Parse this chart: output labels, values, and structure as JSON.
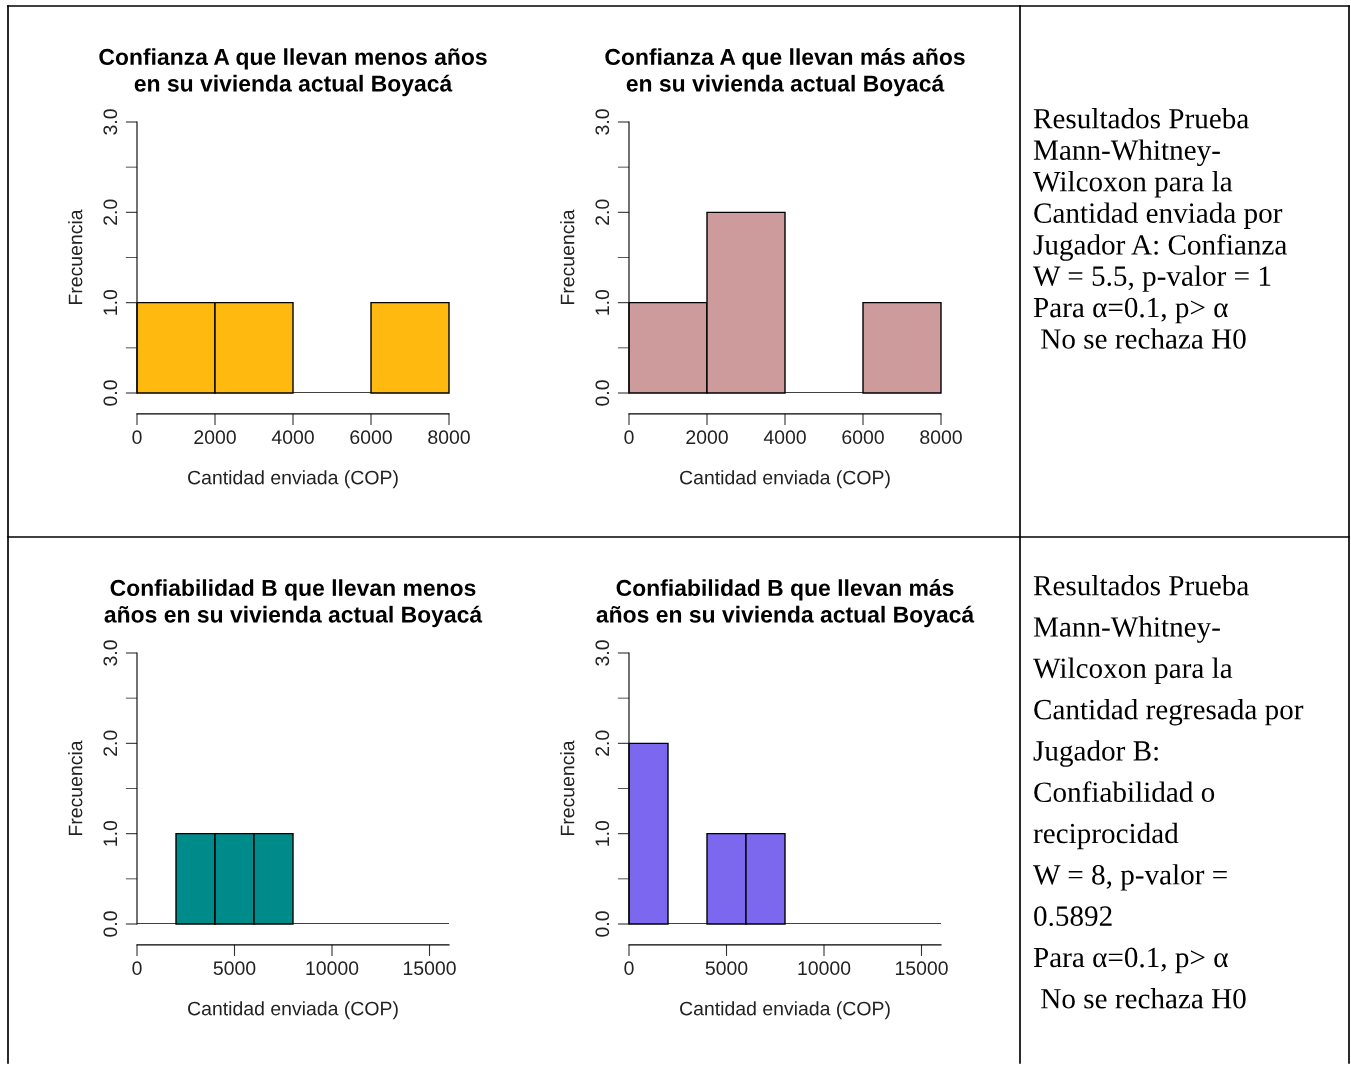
{
  "chart_data": [
    {
      "type": "histogram",
      "title": "Confianza A que llevan menos años\nen su vivienda actual Boyacá",
      "xlabel": "Cantidad enviada (COP)",
      "ylabel": "Frecuencia",
      "bins": [
        0,
        2000,
        4000,
        6000,
        8000
      ],
      "values": [
        1,
        1,
        0,
        1
      ],
      "color": "#ffb90f",
      "ref_lines": [
        {
          "axis": "y",
          "value": 0,
          "color": "#000000"
        }
      ],
      "xlim": [
        0,
        8000
      ],
      "xticks": [
        0,
        2000,
        4000,
        6000,
        8000
      ],
      "ylim": [
        0,
        3
      ],
      "yticks": [
        {
          "value": 0,
          "label": "0.0"
        },
        {
          "value": 0.5,
          "label": null
        },
        {
          "value": 1,
          "label": "1.0"
        },
        {
          "value": 1.5,
          "label": null
        },
        {
          "value": 2,
          "label": "2.0"
        },
        {
          "value": 2.5,
          "label": null
        },
        {
          "value": 3,
          "label": "3.0"
        }
      ]
    },
    {
      "type": "histogram",
      "title": "Confianza A que llevan más años\nen su vivienda actual Boyacá",
      "xlabel": "Cantidad enviada (COP)",
      "ylabel": "Frecuencia",
      "bins": [
        0,
        2000,
        4000,
        6000,
        8000
      ],
      "values": [
        1,
        2,
        0,
        1
      ],
      "color": "#cd9b9b",
      "ref_lines": [
        {
          "axis": "y",
          "value": 0,
          "color": "#000000"
        }
      ],
      "xlim": [
        0,
        8000
      ],
      "xticks": [
        0,
        2000,
        4000,
        6000,
        8000
      ],
      "ylim": [
        0,
        3
      ],
      "yticks": [
        {
          "value": 0,
          "label": "0.0"
        },
        {
          "value": 0.5,
          "label": null
        },
        {
          "value": 1,
          "label": "1.0"
        },
        {
          "value": 1.5,
          "label": null
        },
        {
          "value": 2,
          "label": "2.0"
        },
        {
          "value": 2.5,
          "label": null
        },
        {
          "value": 3,
          "label": "3.0"
        }
      ]
    },
    {
      "type": "other",
      "annotations": [
        "Resultados Prueba",
        "Mann-Whitney-",
        "Wilcoxon para la",
        "Cantidad enviada por",
        "Jugador A: Confianza",
        "W = 5.5, p-valor = 1",
        "Para α=0.1, p> α",
        " No se rechaza H0"
      ]
    },
    {
      "type": "histogram",
      "title": "Confiabilidad B que llevan menos\naños en su vivienda actual Boyacá",
      "xlabel": "Cantidad enviada (COP)",
      "ylabel": "Frecuencia",
      "bins": [
        0,
        2000,
        4000,
        6000,
        8000,
        10000,
        12000,
        14000,
        16000
      ],
      "values": [
        0,
        1,
        1,
        1,
        0,
        0,
        0,
        0
      ],
      "color": "#008b8b",
      "ref_lines": [
        {
          "axis": "y",
          "value": 0,
          "color": "#000000"
        }
      ],
      "xlim": [
        0,
        16000
      ],
      "xticks": [
        0,
        5000,
        10000,
        15000
      ],
      "ylim": [
        0,
        3
      ],
      "yticks": [
        {
          "value": 0,
          "label": "0.0"
        },
        {
          "value": 0.5,
          "label": null
        },
        {
          "value": 1,
          "label": "1.0"
        },
        {
          "value": 1.5,
          "label": null
        },
        {
          "value": 2,
          "label": "2.0"
        },
        {
          "value": 2.5,
          "label": null
        },
        {
          "value": 3,
          "label": "3.0"
        }
      ]
    },
    {
      "type": "histogram",
      "title": "Confiabilidad B que llevan más\naños en su vivienda actual Boyacá",
      "xlabel": "Cantidad enviada (COP)",
      "ylabel": "Frecuencia",
      "bins": [
        0,
        2000,
        4000,
        6000,
        8000,
        10000,
        12000,
        14000,
        16000
      ],
      "values": [
        2,
        0,
        1,
        1,
        0,
        0,
        0,
        0
      ],
      "color": "#7b68ee",
      "ref_lines": [
        {
          "axis": "y",
          "value": 0,
          "color": "#000000"
        }
      ],
      "xlim": [
        0,
        16000
      ],
      "xticks": [
        0,
        5000,
        10000,
        15000
      ],
      "ylim": [
        0,
        3
      ],
      "yticks": [
        {
          "value": 0,
          "label": "0.0"
        },
        {
          "value": 0.5,
          "label": null
        },
        {
          "value": 1,
          "label": "1.0"
        },
        {
          "value": 1.5,
          "label": null
        },
        {
          "value": 2,
          "label": "2.0"
        },
        {
          "value": 2.5,
          "label": null
        },
        {
          "value": 3,
          "label": "3.0"
        }
      ]
    },
    {
      "type": "other",
      "annotations": [
        "Resultados Prueba",
        "Mann-Whitney-",
        "Wilcoxon para la",
        "Cantidad regresada por",
        "Jugador B:",
        "Confiabilidad o",
        "reciprocidad",
        "W = 8, p-valor =",
        "0.5892",
        "Para α=0.1, p> α",
        " No se rechaza H0"
      ]
    }
  ]
}
